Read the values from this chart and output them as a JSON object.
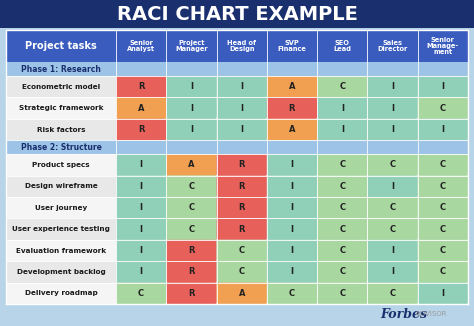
{
  "title": "RACI CHART EXAMPLE",
  "title_bg": "#1a2f6e",
  "title_fg": "#ffffff",
  "outer_bg": "#b8d4e8",
  "header_bg": "#3a5cbf",
  "header_fg": "#ffffff",
  "phase_bg": "#9dc3e6",
  "phase_fg": "#1a2f6e",
  "row_bg_light": "#e8e8e8",
  "row_bg_white": "#f5f5f5",
  "col_headers": [
    "Senior\nAnalyst",
    "Project\nManager",
    "Head of\nDesign",
    "SVP\nFinance",
    "SEO\nLead",
    "Sales\nDirector",
    "Senior\nManage-\nment"
  ],
  "rows": [
    {
      "label": "Phase 1: Research",
      "phase": true,
      "cells": [
        "",
        "",
        "",
        "",
        "",
        "",
        ""
      ]
    },
    {
      "label": "Econometric model",
      "phase": false,
      "cells": [
        "R",
        "I",
        "I",
        "A",
        "C",
        "I",
        "I"
      ]
    },
    {
      "label": "Strategic framework",
      "phase": false,
      "cells": [
        "A",
        "I",
        "I",
        "R",
        "I",
        "I",
        "C"
      ]
    },
    {
      "label": "Risk factors",
      "phase": false,
      "cells": [
        "R",
        "I",
        "I",
        "A",
        "I",
        "I",
        "I"
      ]
    },
    {
      "label": "Phase 2: Structure",
      "phase": true,
      "cells": [
        "",
        "",
        "",
        "",
        "",
        "",
        ""
      ]
    },
    {
      "label": "Product specs",
      "phase": false,
      "cells": [
        "I",
        "A",
        "R",
        "I",
        "C",
        "C",
        "C"
      ]
    },
    {
      "label": "Design wireframe",
      "phase": false,
      "cells": [
        "I",
        "C",
        "R",
        "I",
        "C",
        "I",
        "C"
      ]
    },
    {
      "label": "User journey",
      "phase": false,
      "cells": [
        "I",
        "C",
        "R",
        "I",
        "C",
        "C",
        "C"
      ]
    },
    {
      "label": "User experience testing",
      "phase": false,
      "cells": [
        "I",
        "C",
        "R",
        "I",
        "C",
        "C",
        "C"
      ]
    },
    {
      "label": "Evaluation framework",
      "phase": false,
      "cells": [
        "I",
        "R",
        "C",
        "I",
        "C",
        "I",
        "C"
      ]
    },
    {
      "label": "Development backlog",
      "phase": false,
      "cells": [
        "I",
        "R",
        "C",
        "I",
        "C",
        "I",
        "C"
      ]
    },
    {
      "label": "Delivery roadmap",
      "phase": false,
      "cells": [
        "C",
        "R",
        "A",
        "C",
        "C",
        "C",
        "I"
      ]
    }
  ],
  "cell_colors": {
    "R": "#e8605a",
    "A": "#f0a050",
    "C": "#a8d8a0",
    "I": "#90d0b8",
    "": ""
  },
  "forbes_text": "Forbes",
  "forbes_sub": " ADVISOR",
  "forbes_color": "#1a2f6e",
  "advisor_color": "#999999"
}
